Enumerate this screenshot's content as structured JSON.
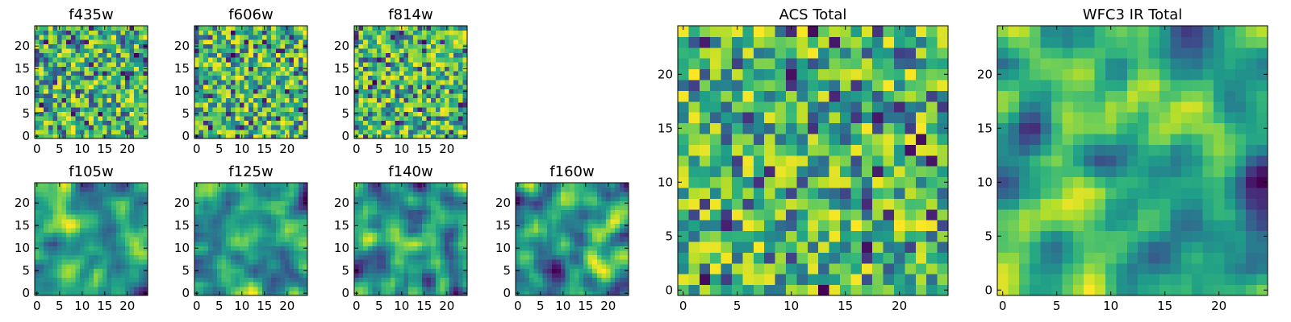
{
  "chart_data": [
    {
      "type": "heatmap",
      "title": "f435w",
      "xticks": [
        "0",
        "5",
        "10",
        "15",
        "20"
      ],
      "yticks": [
        "0",
        "5",
        "10",
        "15",
        "20"
      ],
      "xlim": [
        -0.5,
        24.5
      ],
      "ylim": [
        -0.5,
        24.5
      ],
      "grid_size": 25,
      "seed": 11,
      "smoothness": 0,
      "colormap": "viridis"
    },
    {
      "type": "heatmap",
      "title": "f606w",
      "xticks": [
        "0",
        "5",
        "10",
        "15",
        "20"
      ],
      "yticks": [
        "0",
        "5",
        "10",
        "15",
        "20"
      ],
      "xlim": [
        -0.5,
        24.5
      ],
      "ylim": [
        -0.5,
        24.5
      ],
      "grid_size": 25,
      "seed": 23,
      "smoothness": 0,
      "colormap": "viridis"
    },
    {
      "type": "heatmap",
      "title": "f814w",
      "xticks": [
        "0",
        "5",
        "10",
        "15",
        "20"
      ],
      "yticks": [
        "0",
        "5",
        "10",
        "15",
        "20"
      ],
      "xlim": [
        -0.5,
        24.5
      ],
      "ylim": [
        -0.5,
        24.5
      ],
      "grid_size": 25,
      "seed": 37,
      "smoothness": 0,
      "colormap": "viridis"
    },
    {
      "type": "heatmap",
      "title": "f105w",
      "xticks": [
        "0",
        "5",
        "10",
        "15",
        "20"
      ],
      "yticks": [
        "0",
        "5",
        "10",
        "15",
        "20"
      ],
      "xlim": [
        -0.5,
        24.5
      ],
      "ylim": [
        -0.5,
        24.5
      ],
      "grid_size": 25,
      "seed": 41,
      "smoothness": 2,
      "colormap": "viridis"
    },
    {
      "type": "heatmap",
      "title": "f125w",
      "xticks": [
        "0",
        "5",
        "10",
        "15",
        "20"
      ],
      "yticks": [
        "0",
        "5",
        "10",
        "15",
        "20"
      ],
      "xlim": [
        -0.5,
        24.5
      ],
      "ylim": [
        -0.5,
        24.5
      ],
      "grid_size": 25,
      "seed": 53,
      "smoothness": 2,
      "colormap": "viridis"
    },
    {
      "type": "heatmap",
      "title": "f140w",
      "xticks": [
        "0",
        "5",
        "10",
        "15",
        "20"
      ],
      "yticks": [
        "0",
        "5",
        "10",
        "15",
        "20"
      ],
      "xlim": [
        -0.5,
        24.5
      ],
      "ylim": [
        -0.5,
        24.5
      ],
      "grid_size": 25,
      "seed": 67,
      "smoothness": 2,
      "colormap": "viridis"
    },
    {
      "type": "heatmap",
      "title": "f160w",
      "xticks": [
        "0",
        "5",
        "10",
        "15",
        "20"
      ],
      "yticks": [
        "0",
        "5",
        "10",
        "15",
        "20"
      ],
      "xlim": [
        -0.5,
        24.5
      ],
      "ylim": [
        -0.5,
        24.5
      ],
      "grid_size": 25,
      "seed": 79,
      "smoothness": 2,
      "colormap": "viridis"
    },
    {
      "type": "heatmap",
      "title": "ACS Total",
      "xticks": [
        "0",
        "5",
        "10",
        "15",
        "20"
      ],
      "yticks": [
        "0",
        "5",
        "10",
        "15",
        "20"
      ],
      "xlim": [
        -0.5,
        24.5
      ],
      "ylim": [
        -0.5,
        24.5
      ],
      "grid_size": 25,
      "seed": 97,
      "smoothness": 0,
      "colormap": "viridis"
    },
    {
      "type": "heatmap",
      "title": "WFC3 IR Total",
      "xticks": [
        "0",
        "5",
        "10",
        "15",
        "20"
      ],
      "yticks": [
        "0",
        "5",
        "10",
        "15",
        "20"
      ],
      "xlim": [
        -0.5,
        24.5
      ],
      "ylim": [
        -0.5,
        24.5
      ],
      "grid_size": 25,
      "seed": 113,
      "smoothness": 2,
      "colormap": "viridis"
    }
  ]
}
